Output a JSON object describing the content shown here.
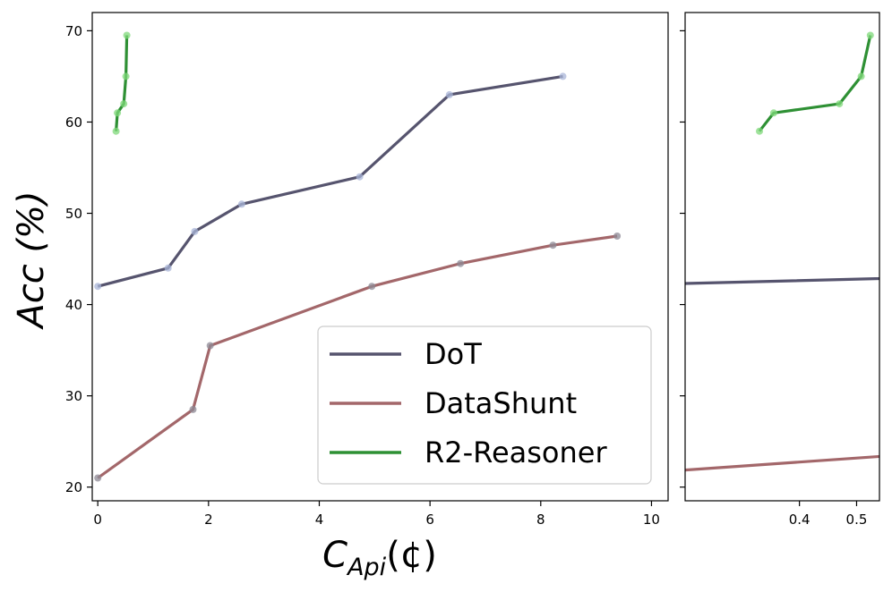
{
  "chart_data": {
    "type": "line",
    "ylabel": "Acc (%)",
    "xlabel": {
      "base": "C",
      "subscript": "Api",
      "unit": "(¢)"
    },
    "ylim": [
      18.5,
      72
    ],
    "yticks": [
      20,
      30,
      40,
      50,
      60,
      70
    ],
    "panels": [
      {
        "name": "main",
        "xlim": [
          -0.1,
          10.3
        ],
        "xticks": [
          0,
          2,
          4,
          6,
          8,
          10
        ],
        "xtick_labels": [
          "0",
          "2",
          "4",
          "6",
          "8",
          "10"
        ]
      },
      {
        "name": "zoom",
        "xlim": [
          0.2,
          0.54
        ],
        "xticks": [
          0.4,
          0.5
        ],
        "xtick_labels": [
          "0.4",
          "0.5"
        ]
      }
    ],
    "series": [
      {
        "name": "DoT",
        "color": "#56546e",
        "marker_color": "#a9b6d8",
        "x": [
          0,
          1.27,
          1.75,
          2.6,
          4.73,
          6.35,
          8.4
        ],
        "y": [
          42,
          44,
          48,
          51,
          54,
          63,
          65
        ]
      },
      {
        "name": "DataShunt",
        "color": "#a3676a",
        "marker_color": "#8e8a96",
        "x": [
          0,
          1.72,
          2.03,
          4.95,
          6.55,
          8.22,
          9.38
        ],
        "y": [
          21,
          28.5,
          35.5,
          42,
          44.5,
          46.5,
          47.5
        ]
      },
      {
        "name": "R2-Reasoner",
        "color": "#2e9034",
        "marker_color": "#7fd87a",
        "x": [
          0.33,
          0.355,
          0.47,
          0.508,
          0.524
        ],
        "y": [
          59,
          61,
          62,
          65,
          69.5
        ]
      }
    ],
    "legend": {
      "position": "lower-right",
      "entries": [
        "DoT",
        "DataShunt",
        "R2-Reasoner"
      ]
    }
  }
}
